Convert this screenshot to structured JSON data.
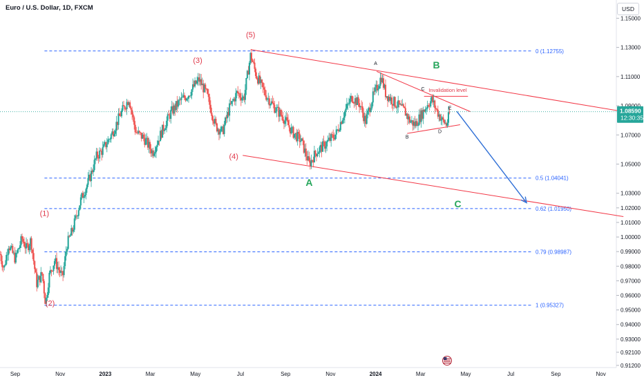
{
  "header": {
    "title": "Euro / U.S. Dollar, 1D, FXCM",
    "currency_button": "USD"
  },
  "price_tag": {
    "price": "1.08590",
    "countdown": "12:30:35"
  },
  "colors": {
    "up": "#26a69a",
    "down": "#ef5350",
    "fib": "#2962ff",
    "channel": "#f23645",
    "wave_red": "#e0384a",
    "wave_green": "#26a65b",
    "arrow": "#2f6fd6",
    "price_bg": "#26a69a"
  },
  "chart_data": {
    "type": "candlestick",
    "symbol": "EUR/USD",
    "timeframe": "1D",
    "ylim": [
      0.9105,
      1.1625
    ],
    "y_ticks": [
      "1.15000",
      "1.13000",
      "1.11000",
      "1.09000",
      "1.07000",
      "1.05000",
      "1.03000",
      "1.02000",
      "1.01000",
      "1.00000",
      "0.99000",
      "0.98000",
      "0.97000",
      "0.96000",
      "0.95000",
      "0.94000",
      "0.93000",
      "0.92100",
      "0.91200"
    ],
    "x_ticks": [
      {
        "label": "Sep",
        "t": 0.0,
        "bold": false
      },
      {
        "label": "Nov",
        "t": 2.0,
        "bold": false
      },
      {
        "label": "2023",
        "t": 4.0,
        "bold": true
      },
      {
        "label": "Mar",
        "t": 6.0,
        "bold": false
      },
      {
        "label": "May",
        "t": 8.0,
        "bold": false
      },
      {
        "label": "Jul",
        "t": 10.0,
        "bold": false
      },
      {
        "label": "Sep",
        "t": 12.0,
        "bold": false
      },
      {
        "label": "Nov",
        "t": 14.0,
        "bold": false
      },
      {
        "label": "2024",
        "t": 16.0,
        "bold": true
      },
      {
        "label": "Mar",
        "t": 18.0,
        "bold": false
      },
      {
        "label": "May",
        "t": 20.0,
        "bold": false
      },
      {
        "label": "Jul",
        "t": 22.0,
        "bold": false
      },
      {
        "label": "Sep",
        "t": 24.0,
        "bold": false
      },
      {
        "label": "Nov",
        "t": 26.0,
        "bold": false
      }
    ],
    "price_anchors": [
      [
        -0.7,
        0.99
      ],
      [
        -0.5,
        0.978
      ],
      [
        -0.3,
        0.995
      ],
      [
        0.0,
        0.985
      ],
      [
        0.3,
        0.999
      ],
      [
        0.5,
        0.992
      ],
      [
        0.7,
        0.998
      ],
      [
        0.95,
        0.968
      ],
      [
        1.2,
        0.975
      ],
      [
        1.35,
        0.954
      ],
      [
        1.5,
        0.973
      ],
      [
        1.75,
        0.984
      ],
      [
        2.1,
        0.972
      ],
      [
        2.3,
        0.995
      ],
      [
        2.55,
        1.005
      ],
      [
        2.9,
        1.025
      ],
      [
        3.3,
        1.04
      ],
      [
        3.6,
        1.055
      ],
      [
        3.9,
        1.06
      ],
      [
        4.3,
        1.071
      ],
      [
        4.7,
        1.085
      ],
      [
        5.05,
        1.095
      ],
      [
        5.35,
        1.072
      ],
      [
        5.7,
        1.068
      ],
      [
        6.1,
        1.058
      ],
      [
        6.5,
        1.072
      ],
      [
        6.9,
        1.085
      ],
      [
        7.3,
        1.093
      ],
      [
        7.7,
        1.098
      ],
      [
        8.15,
        1.108
      ],
      [
        8.5,
        1.098
      ],
      [
        8.9,
        1.076
      ],
      [
        9.2,
        1.072
      ],
      [
        9.5,
        1.088
      ],
      [
        9.85,
        1.099
      ],
      [
        10.15,
        1.095
      ],
      [
        10.45,
        1.125
      ],
      [
        10.7,
        1.111
      ],
      [
        11.1,
        1.098
      ],
      [
        11.5,
        1.089
      ],
      [
        11.9,
        1.082
      ],
      [
        12.3,
        1.072
      ],
      [
        12.7,
        1.066
      ],
      [
        13.05,
        1.05
      ],
      [
        13.35,
        1.058
      ],
      [
        13.8,
        1.064
      ],
      [
        14.25,
        1.071
      ],
      [
        14.6,
        1.085
      ],
      [
        14.95,
        1.096
      ],
      [
        15.3,
        1.091
      ],
      [
        15.55,
        1.079
      ],
      [
        15.85,
        1.095
      ],
      [
        16.05,
        1.102
      ],
      [
        16.25,
        1.11
      ],
      [
        16.45,
        1.098
      ],
      [
        16.85,
        1.092
      ],
      [
        17.3,
        1.086
      ],
      [
        17.5,
        1.08
      ],
      [
        17.75,
        1.077
      ],
      [
        18.0,
        1.083
      ],
      [
        18.3,
        1.091
      ],
      [
        18.5,
        1.094
      ],
      [
        18.7,
        1.087
      ],
      [
        18.95,
        1.08
      ],
      [
        19.15,
        1.077
      ],
      [
        19.3,
        1.086
      ]
    ],
    "fib_levels": [
      {
        "label": "0 (1.12755)",
        "value": 1.12755
      },
      {
        "label": "0.5 (1.04041)",
        "value": 1.04041
      },
      {
        "label": "0.62 (1.01950)",
        "value": 1.0195
      },
      {
        "label": "0.79 (0.98987)",
        "value": 0.98987
      },
      {
        "label": "1 (0.95327)",
        "value": 0.95327
      }
    ],
    "fib_range_t": [
      1.3,
      17.3
    ],
    "wave_labels": [
      {
        "text": "(1)",
        "t": 1.3,
        "y": 1.0145,
        "style": "red"
      },
      {
        "text": "(2)",
        "t": 1.55,
        "y": 0.953,
        "style": "red"
      },
      {
        "text": "(3)",
        "t": 8.1,
        "y": 1.1195,
        "style": "red"
      },
      {
        "text": "(4)",
        "t": 9.7,
        "y": 1.0535,
        "style": "red"
      },
      {
        "text": "(5)",
        "t": 10.45,
        "y": 1.137,
        "style": "red"
      },
      {
        "text": "A",
        "t": 13.05,
        "y": 1.035,
        "style": "green"
      },
      {
        "text": "B",
        "t": 18.7,
        "y": 1.1155,
        "style": "green"
      },
      {
        "text": "C",
        "t": 19.65,
        "y": 1.0205,
        "style": "green"
      },
      {
        "text": "A",
        "t": 16.0,
        "y": 1.118,
        "style": "small"
      },
      {
        "text": "B",
        "t": 17.4,
        "y": 1.0675,
        "style": "small"
      },
      {
        "text": "C",
        "t": 18.1,
        "y": 1.1005,
        "style": "small"
      },
      {
        "text": "D",
        "t": 18.85,
        "y": 1.0712,
        "style": "small"
      },
      {
        "text": "E",
        "t": 19.3,
        "y": 1.0875,
        "style": "small"
      }
    ],
    "annotations": [
      {
        "text": "Invalidation level",
        "t": 19.2,
        "y": 1.0995
      }
    ],
    "invalidation_level": {
      "value": 1.0965,
      "t_range": [
        18.15,
        20.1
      ]
    },
    "channel_upper": [
      [
        10.45,
        1.1285
      ],
      [
        27.0,
        1.086
      ]
    ],
    "channel_lower": [
      [
        10.1,
        1.056
      ],
      [
        27.0,
        1.014
      ]
    ],
    "triangle_upper": [
      [
        16.05,
        1.1135
      ],
      [
        20.2,
        1.086
      ]
    ],
    "triangle_lower": [
      [
        17.4,
        1.071
      ],
      [
        19.75,
        1.077
      ]
    ],
    "projection_arrow": [
      [
        19.6,
        1.0862
      ],
      [
        22.7,
        1.0235
      ]
    ],
    "current_price": 1.0859
  }
}
